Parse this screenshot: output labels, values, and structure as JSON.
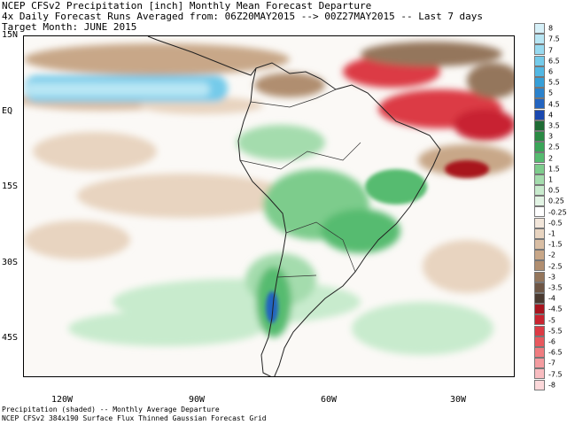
{
  "header": {
    "line1": "NCEP CFSv2 Precipitation [inch] Monthly Mean Forecast Departure",
    "line2": "4x Daily Forecast Runs Averaged from: 06Z20MAY2015 --> 00Z27MAY2015 -- Last 7 days",
    "line3": "Target Month: JUNE 2015"
  },
  "footer": {
    "line1": "Precipitation (shaded) -- Monthly Average Departure",
    "line2": "NCEP CFSv2 384x190 Surface Flux Thinned Gaussian Forecast Grid"
  },
  "map": {
    "lat_labels": [
      "15N",
      "EQ",
      "15S",
      "30S",
      "45S"
    ],
    "lon_labels": [
      "120W",
      "90W",
      "60W",
      "30W"
    ]
  },
  "legend": {
    "items": [
      {
        "label": "8",
        "color": "#d6f0f8"
      },
      {
        "label": "7.5",
        "color": "#b8e6f4"
      },
      {
        "label": "7",
        "color": "#98daf0"
      },
      {
        "label": "6.5",
        "color": "#74cbea"
      },
      {
        "label": "6",
        "color": "#52b8e4"
      },
      {
        "label": "5.5",
        "color": "#369fd8"
      },
      {
        "label": "5",
        "color": "#2b82cc"
      },
      {
        "label": "4.5",
        "color": "#2364c0"
      },
      {
        "label": "4",
        "color": "#1a48b0"
      },
      {
        "label": "3.5",
        "color": "#1e6b34"
      },
      {
        "label": "3",
        "color": "#2a8a44"
      },
      {
        "label": "2.5",
        "color": "#3aa558"
      },
      {
        "label": "2",
        "color": "#56bb70"
      },
      {
        "label": "1.5",
        "color": "#7dcc8c"
      },
      {
        "label": "1",
        "color": "#a4dcad"
      },
      {
        "label": "0.5",
        "color": "#c8ebcd"
      },
      {
        "label": "0.25",
        "color": "#e2f4e4"
      },
      {
        "label": "-0.25",
        "color": "#ffffff"
      },
      {
        "label": "-0.5",
        "color": "#f2e6da"
      },
      {
        "label": "-1",
        "color": "#e8d4c0"
      },
      {
        "label": "-1.5",
        "color": "#d9bea4"
      },
      {
        "label": "-2",
        "color": "#c8a788"
      },
      {
        "label": "-2.5",
        "color": "#b08e70"
      },
      {
        "label": "-3",
        "color": "#94765c"
      },
      {
        "label": "-3.5",
        "color": "#6e5645"
      },
      {
        "label": "-4",
        "color": "#4a3a30"
      },
      {
        "label": "-4.5",
        "color": "#a8141e"
      },
      {
        "label": "-5",
        "color": "#c82430"
      },
      {
        "label": "-5.5",
        "color": "#dc3a44"
      },
      {
        "label": "-6",
        "color": "#e8585e"
      },
      {
        "label": "-6.5",
        "color": "#f07c80"
      },
      {
        "label": "-7",
        "color": "#f49ca0"
      },
      {
        "label": "-7.5",
        "color": "#f8bcc0"
      },
      {
        "label": "-8",
        "color": "#fcd8da"
      }
    ]
  }
}
